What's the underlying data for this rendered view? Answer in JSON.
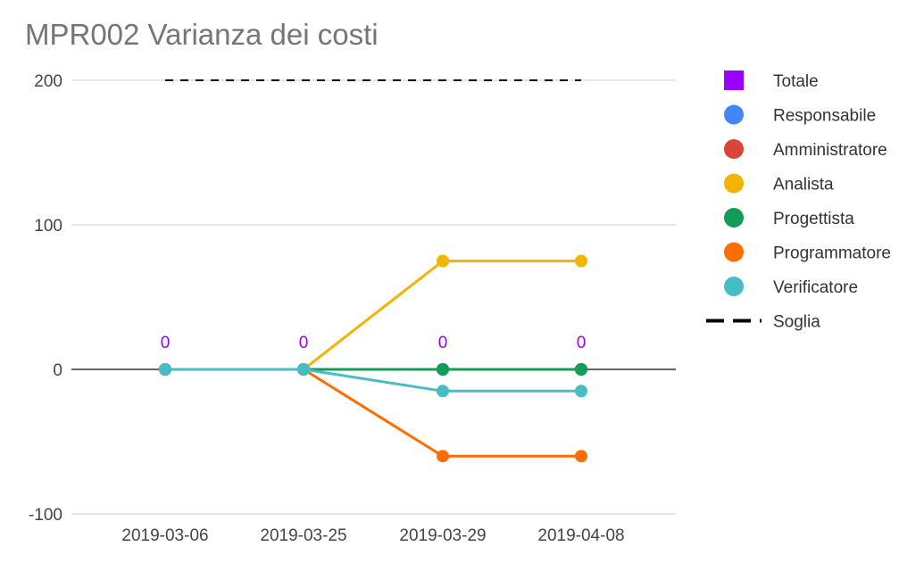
{
  "chart_data": {
    "type": "line",
    "title": "MPR002 Varianza dei costi",
    "xlabel": "",
    "ylabel": "",
    "categories": [
      "2019-03-06",
      "2019-03-25",
      "2019-03-29",
      "2019-04-08"
    ],
    "ylim": [
      -100,
      200
    ],
    "yticks": [
      -100,
      0,
      100,
      200
    ],
    "grid": true,
    "legend_position": "right",
    "series": [
      {
        "name": "Totale",
        "values": [
          0,
          0,
          0,
          0
        ],
        "color": "#9900ff",
        "marker": "square",
        "data_labels": [
          "0",
          "0",
          "0",
          "0"
        ]
      },
      {
        "name": "Responsabile",
        "values": [
          0,
          0,
          0,
          0
        ],
        "color": "#4285f4",
        "marker": "circle"
      },
      {
        "name": "Amministratore",
        "values": [
          0,
          0,
          0,
          0
        ],
        "color": "#db4437",
        "marker": "circle"
      },
      {
        "name": "Analista",
        "values": [
          0,
          0,
          75,
          75
        ],
        "color": "#f4b400",
        "marker": "circle"
      },
      {
        "name": "Progettista",
        "values": [
          0,
          0,
          0,
          0
        ],
        "color": "#0f9d58",
        "marker": "circle"
      },
      {
        "name": "Programmatore",
        "values": [
          0,
          0,
          -60,
          -60
        ],
        "color": "#ff6d00",
        "marker": "circle"
      },
      {
        "name": "Verificatore",
        "values": [
          0,
          0,
          -15,
          -15
        ],
        "color": "#46bdc6",
        "marker": "circle"
      },
      {
        "name": "Soglia",
        "values": [
          200,
          200,
          200,
          200
        ],
        "color": "#000000",
        "marker": "none",
        "dashed": true
      }
    ]
  }
}
